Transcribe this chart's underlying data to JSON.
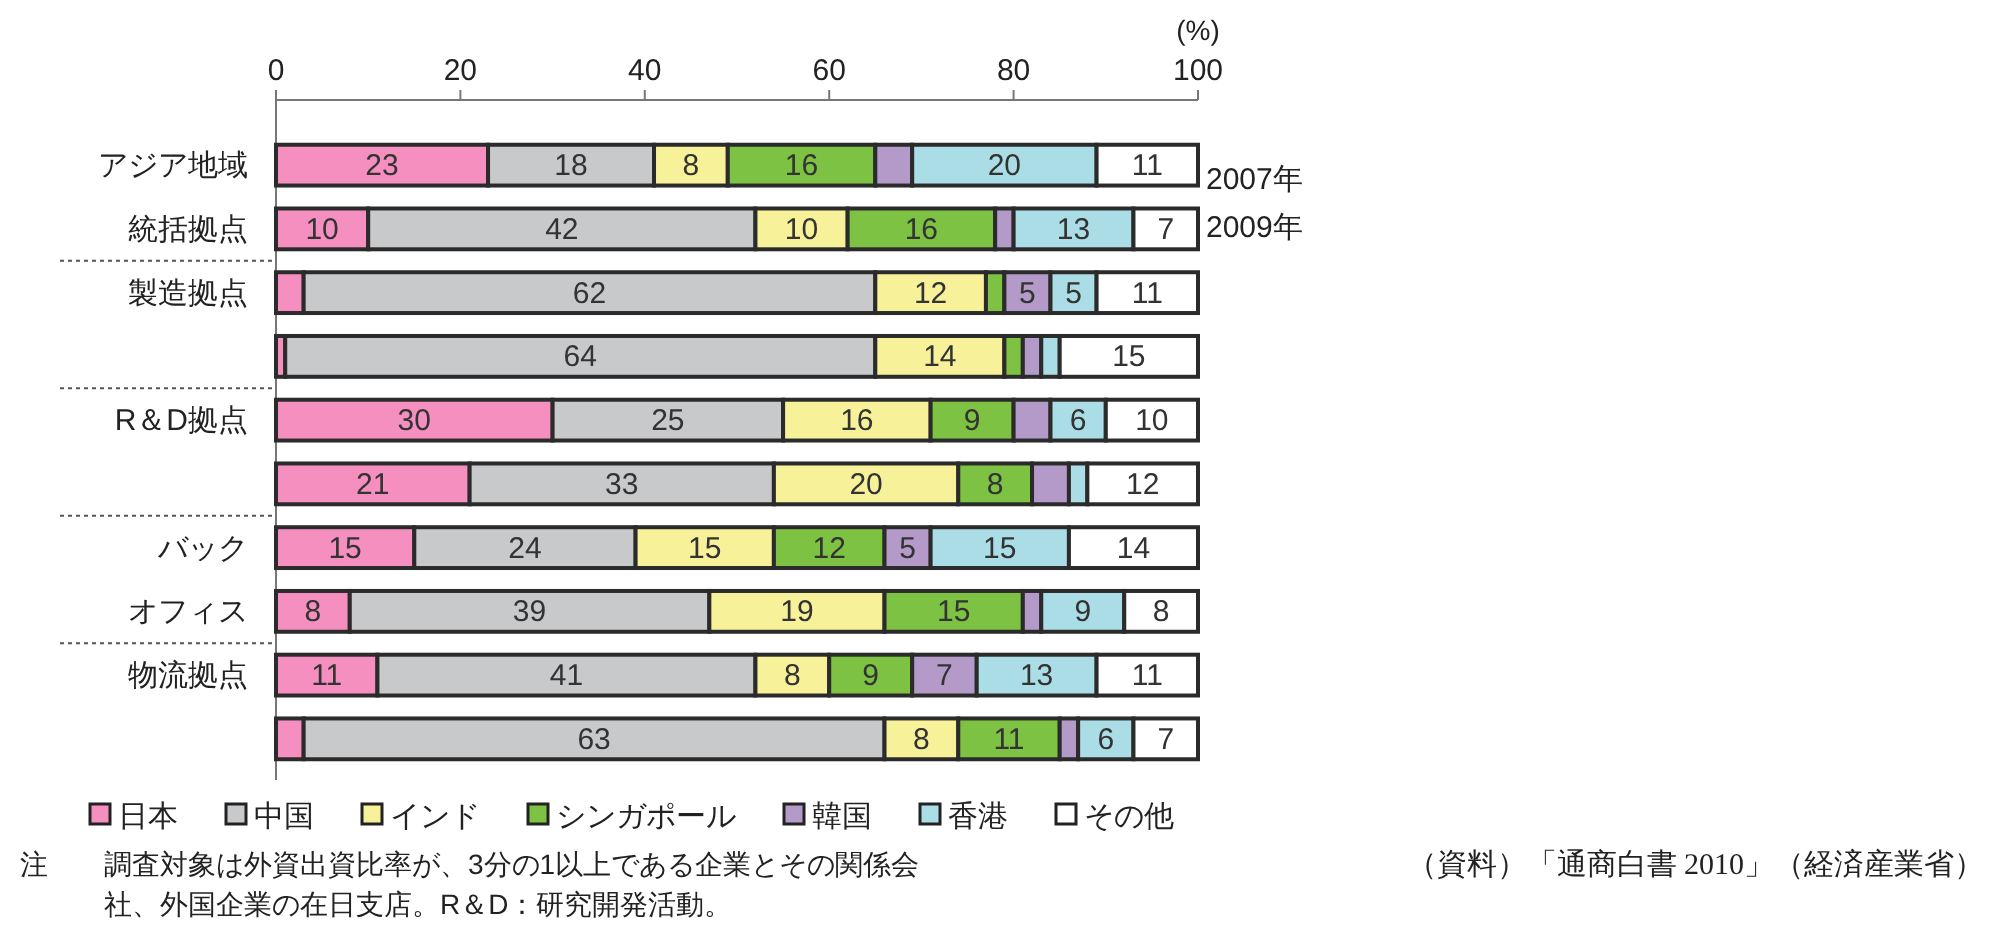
{
  "chart_data": {
    "type": "bar",
    "orientation": "horizontal",
    "stacked": true,
    "xlabel": "(%)",
    "xlim": [
      0,
      100
    ],
    "xticks": [
      0,
      20,
      40,
      60,
      80,
      100
    ],
    "grid": false,
    "legend": "bottom",
    "categories": [
      "アジア地域",
      "統括拠点",
      "製造拠点",
      null,
      "R＆D拠点",
      null,
      "バック",
      "オフィス",
      "物流拠点",
      null
    ],
    "series": [
      {
        "name": "日本",
        "color": "#f48fbf",
        "values": [
          23,
          10,
          3,
          1,
          30,
          21,
          15,
          8,
          11,
          3
        ],
        "value_labels": [
          "23",
          "10",
          null,
          null,
          "30",
          "21",
          "15",
          "8",
          "11",
          null
        ]
      },
      {
        "name": "中国",
        "color": "#c8c9cb",
        "values": [
          18,
          42,
          62,
          64,
          25,
          33,
          24,
          39,
          41,
          63
        ],
        "value_labels": [
          "18",
          "42",
          "62",
          "64",
          "25",
          "33",
          "24",
          "39",
          "41",
          "63"
        ]
      },
      {
        "name": "インド",
        "color": "#f7f29a",
        "values": [
          8,
          10,
          12,
          14,
          16,
          20,
          15,
          19,
          8,
          8
        ],
        "value_labels": [
          "8",
          "10",
          "12",
          "14",
          "16",
          "20",
          "15",
          "19",
          "8",
          "8"
        ]
      },
      {
        "name": "シンガポール",
        "color": "#7dc242",
        "values": [
          16,
          16,
          2,
          2,
          9,
          8,
          12,
          15,
          9,
          11
        ],
        "value_labels": [
          "16",
          "16",
          null,
          null,
          "9",
          "8",
          "12",
          "15",
          "9",
          "11"
        ]
      },
      {
        "name": "韓国",
        "color": "#b49ac8",
        "values": [
          4,
          2,
          5,
          2,
          4,
          4,
          5,
          2,
          7,
          2
        ],
        "value_labels": [
          null,
          null,
          "5",
          null,
          null,
          null,
          "5",
          null,
          "7",
          null
        ]
      },
      {
        "name": "香港",
        "color": "#abdde6",
        "values": [
          20,
          13,
          5,
          2,
          6,
          2,
          15,
          9,
          13,
          6
        ],
        "value_labels": [
          "20",
          "13",
          "5",
          null,
          "6",
          null,
          "15",
          "9",
          "13",
          "6"
        ]
      },
      {
        "name": "その他",
        "color": "#ffffff",
        "values": [
          11,
          7,
          11,
          15,
          10,
          12,
          14,
          8,
          11,
          7
        ],
        "value_labels": [
          "11",
          "7",
          "11",
          "15",
          "10",
          "12",
          "14",
          "8",
          "11",
          "7"
        ]
      }
    ],
    "annotations": [
      "2007年",
      "2009年",
      "注　調査対象は外資出資比率が、3分の1以上である企業とその関係会社、外国企業の在日支店。R＆D：研究開発活動。",
      "（資料）「通商白書 2010」（経済産業省）"
    ]
  }
}
